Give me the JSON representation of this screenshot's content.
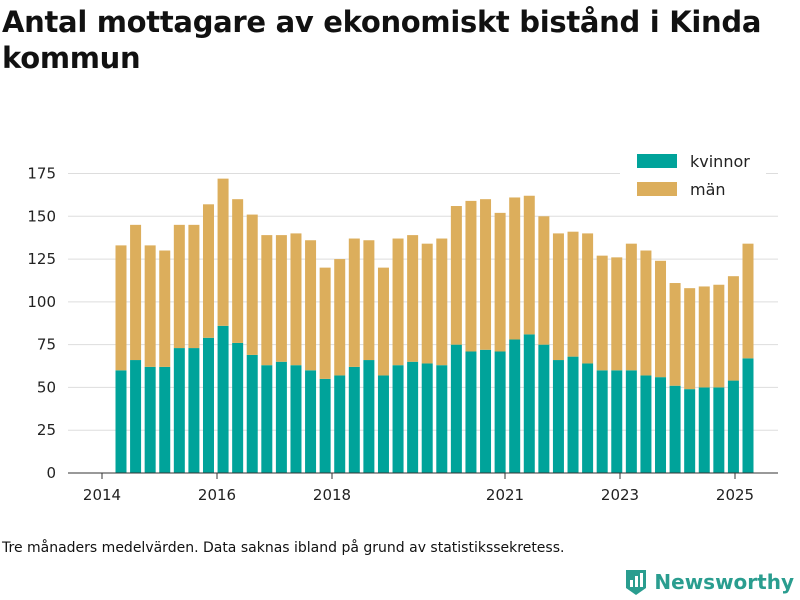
{
  "title": "Antal mottagare av ekonomiskt bistånd i Kinda kommun",
  "footnote": "Tre månaders medelvärden. Data saknas ibland på grund av statistikssekretess.",
  "brand": "Newsworthy",
  "colors": {
    "kvinnor": "#00a39a",
    "man": "#dcae5c",
    "grid": "#dddddd",
    "brand": "#2a9d8f"
  },
  "chart_data": {
    "type": "bar",
    "stacked": true,
    "title": "Antal mottagare av ekonomiskt bistånd i Kinda kommun",
    "xlabel": "",
    "ylabel": "",
    "ylim": [
      0,
      175
    ],
    "yticks": [
      0,
      25,
      50,
      75,
      100,
      125,
      150,
      175
    ],
    "xticks": [
      "2014",
      "2016",
      "2018",
      "2021",
      "2023",
      "2025"
    ],
    "legend_position": "top-right",
    "grid": true,
    "series": [
      {
        "name": "kvinnor",
        "color": "#00a39a",
        "values": [
          60,
          66,
          62,
          62,
          73,
          73,
          79,
          86,
          76,
          69,
          63,
          65,
          63,
          60,
          55,
          57,
          62,
          66,
          57,
          63,
          65,
          64,
          63,
          75,
          71,
          72,
          71,
          78,
          81,
          75,
          66,
          68,
          64,
          60,
          60,
          60,
          57,
          56,
          51,
          49,
          50,
          50,
          54,
          67
        ]
      },
      {
        "name": "män",
        "color": "#dcae5c",
        "values": [
          73,
          79,
          71,
          68,
          72,
          72,
          78,
          86,
          84,
          82,
          76,
          74,
          77,
          76,
          65,
          68,
          75,
          70,
          63,
          74,
          74,
          70,
          74,
          81,
          88,
          88,
          81,
          83,
          81,
          75,
          74,
          73,
          76,
          67,
          66,
          74,
          73,
          68,
          60,
          59,
          59,
          60,
          61,
          67
        ]
      }
    ]
  }
}
